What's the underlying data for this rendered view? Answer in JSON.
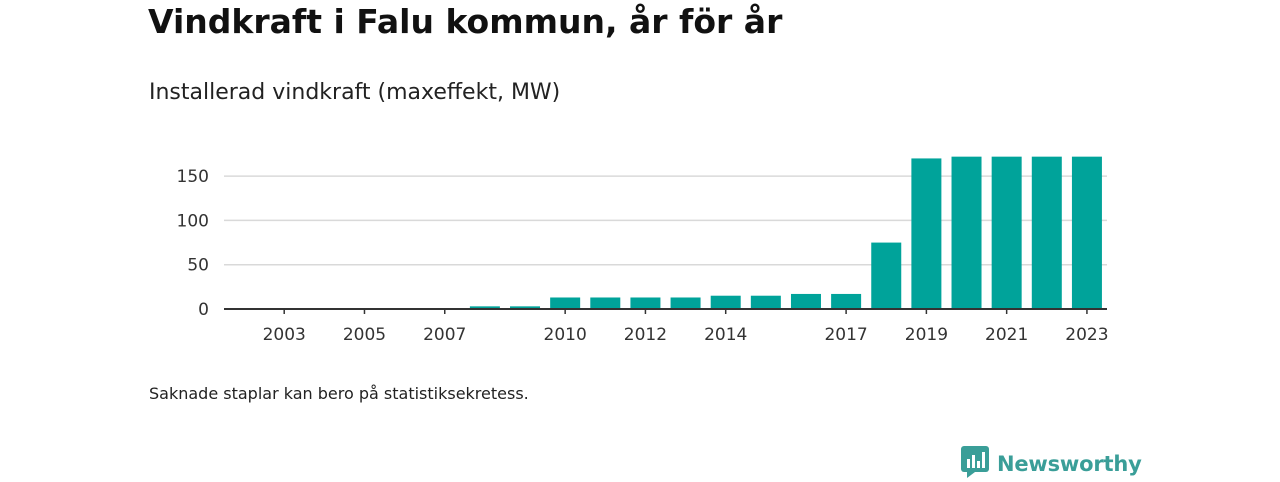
{
  "header": {
    "title": "Vindkraft i Falu kommun, år för år",
    "subtitle": "Installerad vindkraft (maxeffekt, MW)"
  },
  "footer": {
    "note": "Saknade staplar kan bero på statistiksekretess.",
    "brand": "Newsworthy"
  },
  "colors": {
    "bar": "#00a39a",
    "grid": "#d9d9d9",
    "axis": "#333333",
    "brand": "#3a9e98"
  },
  "icons": {
    "brand_logo": "newsworthy-logo-icon"
  },
  "chart_data": {
    "type": "bar",
    "title": "",
    "xlabel": "",
    "ylabel": "",
    "categories": [
      2002,
      2003,
      2004,
      2005,
      2006,
      2007,
      2008,
      2009,
      2010,
      2011,
      2012,
      2013,
      2014,
      2015,
      2016,
      2017,
      2018,
      2019,
      2020,
      2021,
      2022,
      2023
    ],
    "values": [
      0,
      0,
      0,
      0,
      0,
      0,
      3,
      3,
      13,
      13,
      13,
      13,
      15,
      15,
      17,
      17,
      75,
      170,
      172,
      172,
      172,
      172
    ],
    "ylim": [
      0,
      175
    ],
    "yticks": [
      0,
      50,
      100,
      150
    ],
    "xtick_labels": [
      "2003",
      "2005",
      "2007",
      "2010",
      "2012",
      "2014",
      "2017",
      "2019",
      "2021",
      "2023"
    ],
    "grid": true
  }
}
